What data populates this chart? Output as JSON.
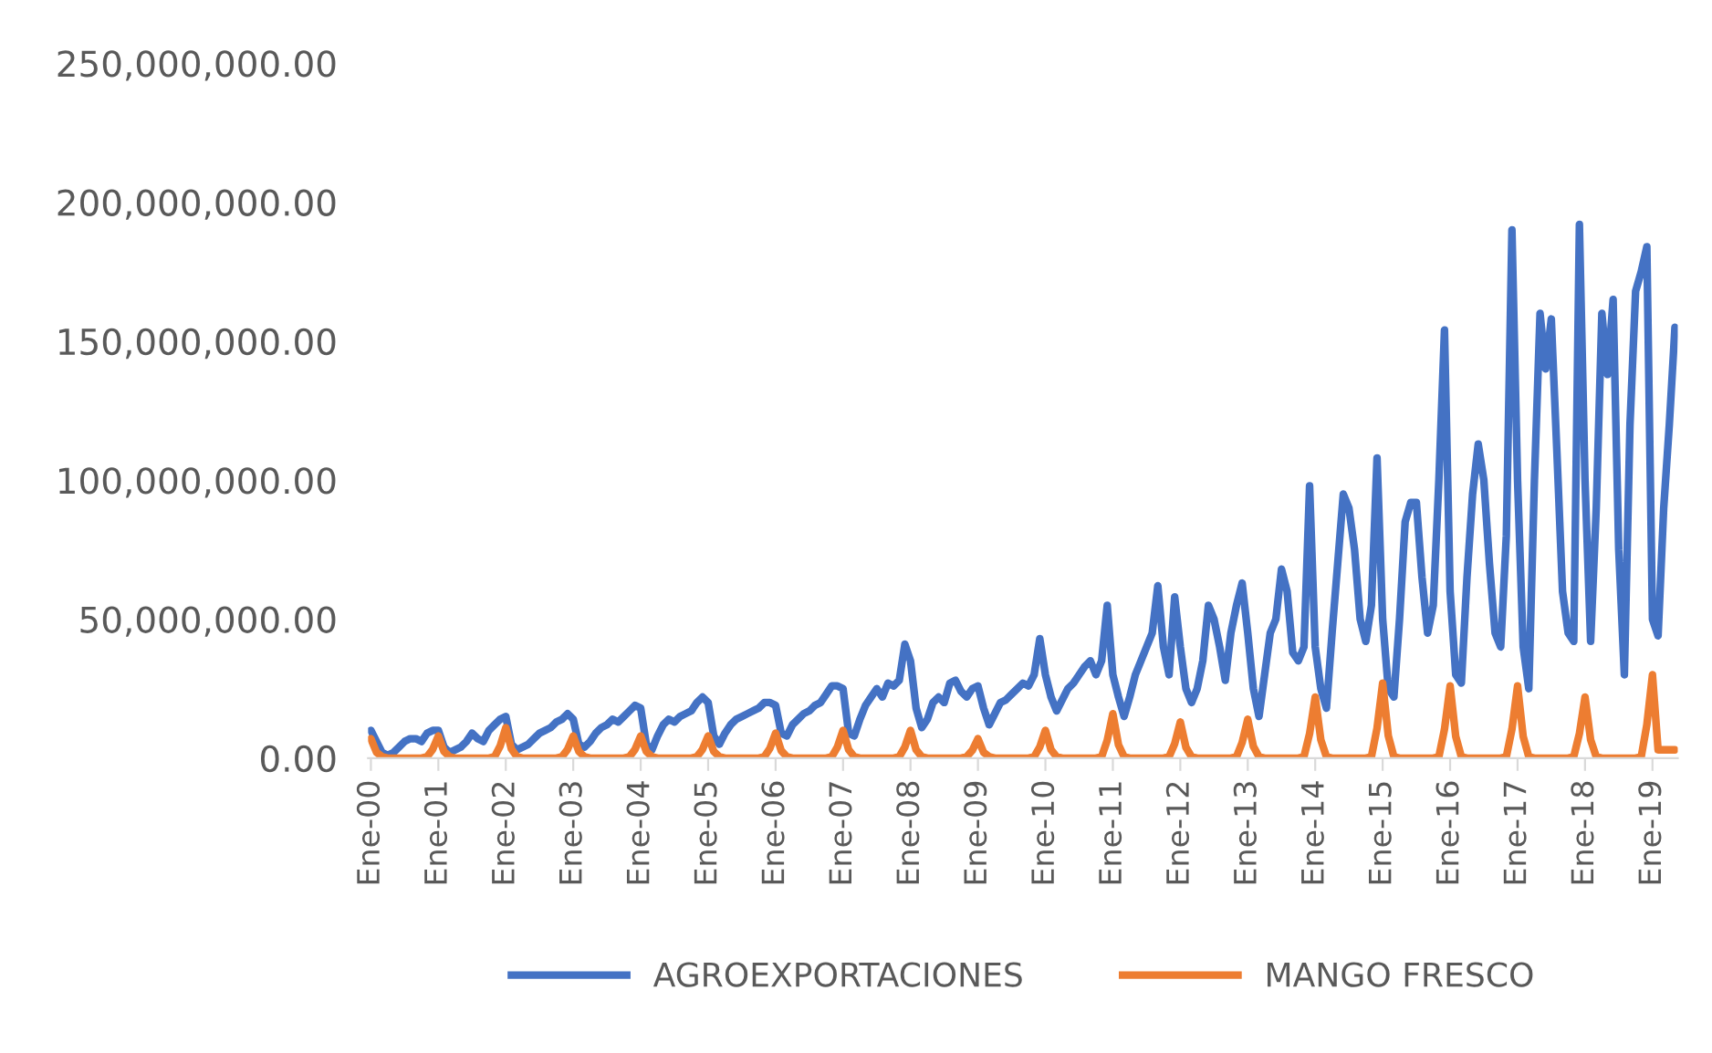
{
  "chart_data": {
    "type": "line",
    "categories": [
      "Ene-00",
      null,
      null,
      null,
      null,
      null,
      null,
      null,
      null,
      null,
      null,
      null,
      "Ene-01",
      null,
      null,
      null,
      null,
      null,
      null,
      null,
      null,
      null,
      null,
      null,
      "Ene-02",
      null,
      null,
      null,
      null,
      null,
      null,
      null,
      null,
      null,
      null,
      null,
      "Ene-03",
      null,
      null,
      null,
      null,
      null,
      null,
      null,
      null,
      null,
      null,
      null,
      "Ene-04",
      null,
      null,
      null,
      null,
      null,
      null,
      null,
      null,
      null,
      null,
      null,
      "Ene-05",
      null,
      null,
      null,
      null,
      null,
      null,
      null,
      null,
      null,
      null,
      null,
      "Ene-06",
      null,
      null,
      null,
      null,
      null,
      null,
      null,
      null,
      null,
      null,
      null,
      "Ene-07",
      null,
      null,
      null,
      null,
      null,
      null,
      null,
      null,
      null,
      null,
      null,
      "Ene-08",
      null,
      null,
      null,
      null,
      null,
      null,
      null,
      null,
      null,
      null,
      null,
      "Ene-09",
      null,
      null,
      null,
      null,
      null,
      null,
      null,
      null,
      null,
      null,
      null,
      "Ene-10",
      null,
      null,
      null,
      null,
      null,
      null,
      null,
      null,
      null,
      null,
      null,
      "Ene-11",
      null,
      null,
      null,
      null,
      null,
      null,
      null,
      null,
      null,
      null,
      null,
      "Ene-12",
      null,
      null,
      null,
      null,
      null,
      null,
      null,
      null,
      null,
      null,
      null,
      "Ene-13",
      null,
      null,
      null,
      null,
      null,
      null,
      null,
      null,
      null,
      null,
      null,
      "Ene-14",
      null,
      null,
      null,
      null,
      null,
      null,
      null,
      null,
      null,
      null,
      null,
      "Ene-15",
      null,
      null,
      null,
      null,
      null,
      null,
      null,
      null,
      null,
      null,
      null,
      "Ene-16",
      null,
      null,
      null,
      null,
      null,
      null,
      null,
      null,
      null,
      null,
      null,
      "Ene-17",
      null,
      null,
      null,
      null,
      null,
      null,
      null,
      null,
      null,
      null,
      null,
      "Ene-18",
      null,
      null,
      null,
      null,
      null,
      null,
      null,
      null,
      null,
      null,
      null,
      "Ene-19",
      null,
      null,
      null,
      null
    ],
    "series": [
      {
        "name": "AGROEXPORTACIONES",
        "color": "#4472c4",
        "values": [
          10000000.0,
          6000000.0,
          2000000.0,
          1000000.0,
          2000000.0,
          4000000.0,
          6000000.0,
          7000000.0,
          7000000.0,
          6000000.0,
          9000000.0,
          10000000.0,
          10000000.0,
          4000000.0,
          2000000.0,
          3000000.0,
          4000000.0,
          6000000.0,
          9000000.0,
          7000000.0,
          6000000.0,
          10000000.0,
          12000000.0,
          14000000.0,
          15000000.0,
          5000000.0,
          3000000.0,
          4000000.0,
          5000000.0,
          7000000.0,
          9000000.0,
          10000000.0,
          11000000.0,
          13000000.0,
          14000000.0,
          16000000.0,
          14000000.0,
          5000000.0,
          4000000.0,
          6000000.0,
          9000000.0,
          11000000.0,
          12000000.0,
          14000000.0,
          13000000.0,
          15000000.0,
          17000000.0,
          19000000.0,
          18000000.0,
          5000000.0,
          3000000.0,
          8000000.0,
          12000000.0,
          14000000.0,
          13000000.0,
          15000000.0,
          16000000.0,
          17000000.0,
          20000000.0,
          22000000.0,
          20000000.0,
          8000000.0,
          5000000.0,
          9000000.0,
          12000000.0,
          14000000.0,
          15000000.0,
          16000000.0,
          17000000.0,
          18000000.0,
          20000000.0,
          20000000.0,
          19000000.0,
          9000000.0,
          8000000.0,
          12000000.0,
          14000000.0,
          16000000.0,
          17000000.0,
          19000000.0,
          20000000.0,
          23000000.0,
          26000000.0,
          26000000.0,
          25000000.0,
          9000000.0,
          8000000.0,
          14000000.0,
          19000000.0,
          22000000.0,
          25000000.0,
          22000000.0,
          27000000.0,
          26000000.0,
          28000000.0,
          41000000.0,
          35000000.0,
          18000000.0,
          11000000.0,
          14000000.0,
          20000000.0,
          22000000.0,
          20000000.0,
          27000000.0,
          28000000.0,
          24000000.0,
          22000000.0,
          25000000.0,
          26000000.0,
          18000000.0,
          12000000.0,
          16000000.0,
          20000000.0,
          21000000.0,
          23000000.0,
          25000000.0,
          27000000.0,
          26000000.0,
          30000000.0,
          43000000.0,
          30000000.0,
          22000000.0,
          17000000.0,
          21000000.0,
          25000000.0,
          27000000.0,
          30000000.0,
          33000000.0,
          35000000.0,
          30000000.0,
          35000000.0,
          55000000.0,
          30000000.0,
          22000000.0,
          15000000.0,
          22000000.0,
          30000000.0,
          35000000.0,
          40000000.0,
          45000000.0,
          62000000.0,
          40000000.0,
          30000000.0,
          58000000.0,
          40000000.0,
          25000000.0,
          20000000.0,
          25000000.0,
          35000000.0,
          55000000.0,
          50000000.0,
          40000000.0,
          28000000.0,
          45000000.0,
          55000000.0,
          63000000.0,
          45000000.0,
          25000000.0,
          15000000.0,
          30000000.0,
          45000000.0,
          50000000.0,
          68000000.0,
          60000000.0,
          38000000.0,
          35000000.0,
          40000000.0,
          98000000.0,
          40000000.0,
          25000000.0,
          18000000.0,
          45000000.0,
          70000000.0,
          95000000.0,
          90000000.0,
          75000000.0,
          50000000.0,
          42000000.0,
          55000000.0,
          108000000.0,
          50000000.0,
          25000000.0,
          22000000.0,
          50000000.0,
          85000000.0,
          92000000.0,
          92000000.0,
          65000000.0,
          45000000.0,
          55000000.0,
          100000000.0,
          154000000.0,
          60000000.0,
          30000000.0,
          27000000.0,
          65000000.0,
          95000000.0,
          113000000.0,
          100000000.0,
          70000000.0,
          45000000.0,
          40000000.0,
          80000000.0,
          190000000.0,
          100000000.0,
          40000000.0,
          25000000.0,
          100000000.0,
          160000000.0,
          140000000.0,
          158000000.0,
          110000000.0,
          60000000.0,
          45000000.0,
          42000000.0,
          192000000.0,
          100000000.0,
          42000000.0,
          90000000.0,
          160000000.0,
          138000000.0,
          165000000.0,
          75000000.0,
          30000000.0,
          120000000.0,
          168000000.0,
          175000000.0,
          184000000.0,
          50000000.0,
          44000000.0,
          90000000.0,
          120000000.0,
          155000000.0
        ]
      },
      {
        "name": "MANGO FRESCO",
        "color": "#ed7d31",
        "values": [
          7000000.0,
          2100000.0,
          500000.0,
          0,
          0,
          0,
          0,
          0,
          0,
          0,
          500000.0,
          3200000.0,
          8000000.0,
          2400000.0,
          500000.0,
          0,
          0,
          0,
          0,
          0,
          0,
          0,
          500000.0,
          4400000.0,
          11000000.0,
          3300000.0,
          500000.0,
          0,
          0,
          0,
          0,
          0,
          0,
          0,
          500000.0,
          3200000.0,
          8000000.0,
          2400000.0,
          500000.0,
          0,
          0,
          0,
          0,
          0,
          0,
          0,
          500000.0,
          3200000.0,
          8000000.0,
          2400000.0,
          500000.0,
          0,
          0,
          0,
          0,
          0,
          0,
          0,
          500000.0,
          3200000.0,
          8000000.0,
          2400000.0,
          500000.0,
          0,
          0,
          0,
          0,
          0,
          0,
          0,
          500000.0,
          3600000.0,
          9000000.0,
          2700000.0,
          500000.0,
          0,
          0,
          0,
          0,
          0,
          0,
          0,
          500000.0,
          4000000.0,
          10000000.0,
          3000000.0,
          500000.0,
          0,
          0,
          0,
          0,
          0,
          0,
          0,
          500000.0,
          4000000.0,
          10000000.0,
          3000000.0,
          500000.0,
          0,
          0,
          0,
          0,
          0,
          0,
          0,
          500000.0,
          2800000.0,
          7000000.0,
          2100000.0,
          500000.0,
          0,
          0,
          0,
          0,
          0,
          0,
          0,
          500000.0,
          4000000.0,
          10000000.0,
          3000000.0,
          500000.0,
          0,
          0,
          0,
          0,
          0,
          0,
          0,
          500000.0,
          6400000.0,
          16000000.0,
          4800000.0,
          500000.0,
          0,
          0,
          0,
          0,
          0,
          0,
          0,
          500000.0,
          5200000.0,
          13000000.0,
          3900000.0,
          500000.0,
          0,
          0,
          0,
          0,
          0,
          0,
          0,
          500000.0,
          5600000.0,
          14000000.0,
          4200000.0,
          500000.0,
          0,
          0,
          0,
          0,
          0,
          0,
          0,
          500000.0,
          8800000.0,
          22000000.0,
          6600000.0,
          500000.0,
          0,
          0,
          0,
          0,
          0,
          0,
          0,
          500000.0,
          10800000.0,
          27000000.0,
          8100000.0,
          500000.0,
          0,
          0,
          0,
          0,
          0,
          0,
          0,
          500000.0,
          10400000.0,
          26000000.0,
          7800000.0,
          500000.0,
          0,
          0,
          0,
          0,
          0,
          0,
          0,
          500000.0,
          10400000.0,
          26000000.0,
          7800000.0,
          500000.0,
          0,
          0,
          0,
          0,
          0,
          0,
          0,
          500000.0,
          8800000.0,
          22000000.0,
          6600000.0,
          500000.0,
          0,
          0,
          0,
          0,
          0,
          0,
          0,
          500000.0,
          12000000.0,
          30000000.0,
          3000000.0,
          3000000.0,
          3000000.0,
          3000000.0
        ]
      }
    ],
    "ylim": [
      0,
      250000000.0
    ],
    "yticks": [
      {
        "value": 0,
        "label": "0.00"
      },
      {
        "value": 50000000.0,
        "label": "50,000,000.00"
      },
      {
        "value": 100000000.0,
        "label": "100,000,000.00"
      },
      {
        "value": 150000000.0,
        "label": "150,000,000.00"
      },
      {
        "value": 200000000.0,
        "label": "200,000,000.00"
      },
      {
        "value": 250000000.0,
        "label": "250,000,000.00"
      }
    ],
    "grid": false,
    "legend": "bottom",
    "marker": "none",
    "line_style": "solid"
  }
}
